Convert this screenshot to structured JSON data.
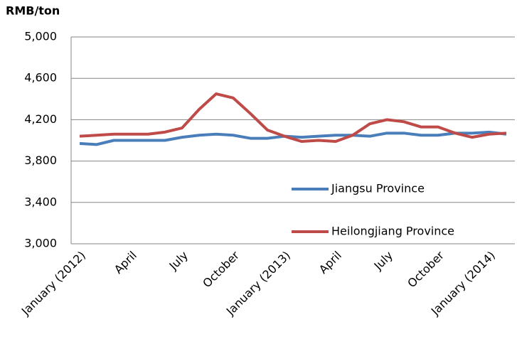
{
  "chart_data": {
    "type": "line",
    "y_label": "RMB/ton",
    "categories": [
      "January (2012)",
      null,
      null,
      "April",
      null,
      null,
      "July",
      null,
      null,
      "October",
      null,
      null,
      "January (2013)",
      null,
      null,
      "April",
      null,
      null,
      "July",
      null,
      null,
      "October",
      null,
      null,
      "January (2014)",
      null
    ],
    "series": [
      {
        "name": "Jiangsu Province",
        "color": "#4a7ebb",
        "values": [
          3970,
          3960,
          4000,
          4000,
          4000,
          4000,
          4030,
          4050,
          4060,
          4050,
          4020,
          4020,
          4040,
          4030,
          4040,
          4050,
          4050,
          4040,
          4070,
          4070,
          4050,
          4050,
          4070,
          4070,
          4080,
          4060
        ]
      },
      {
        "name": "Heilongjiang Province",
        "color": "#be4b48",
        "values": [
          4040,
          4050,
          4060,
          4060,
          4060,
          4080,
          4120,
          4300,
          4450,
          4410,
          4260,
          4100,
          4040,
          3990,
          4000,
          3990,
          4050,
          4160,
          4200,
          4180,
          4130,
          4130,
          4070,
          4030,
          4060,
          4070
        ]
      }
    ],
    "ylim": [
      3000,
      5000
    ],
    "yticks": [
      {
        "value": 3000,
        "label": "3,000"
      },
      {
        "value": 3400,
        "label": "3,400"
      },
      {
        "value": 3800,
        "label": "3,800"
      },
      {
        "value": 4200,
        "label": "4,200"
      },
      {
        "value": 4600,
        "label": "4,600"
      },
      {
        "value": 5000,
        "label": "5,000"
      }
    ],
    "grid": true,
    "legend": "right"
  }
}
